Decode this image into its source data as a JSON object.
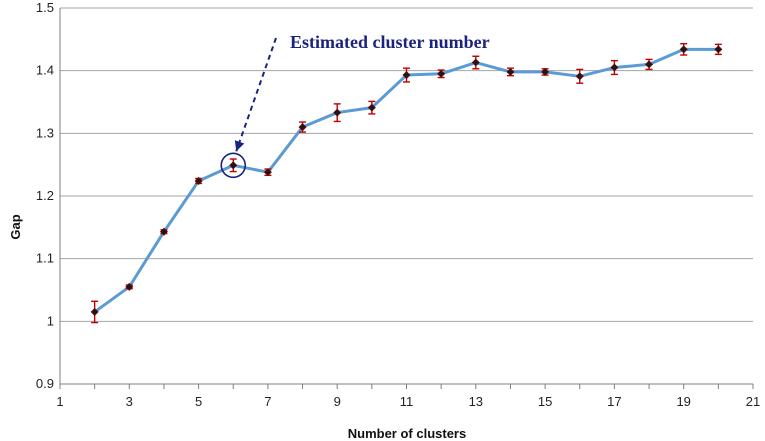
{
  "chart_data": {
    "type": "line",
    "title": "",
    "xlabel": "Number of clusters",
    "ylabel": "Gap",
    "xlim": [
      1,
      21
    ],
    "ylim": [
      0.9,
      1.5
    ],
    "x_ticks": [
      1,
      3,
      5,
      7,
      9,
      11,
      13,
      15,
      17,
      19,
      21
    ],
    "x_tick_labels": [
      "1",
      "3",
      "5",
      "7",
      "9",
      "11",
      "13",
      "15",
      "17",
      "19",
      "21"
    ],
    "y_ticks": [
      0.9,
      1.0,
      1.1,
      1.2,
      1.3,
      1.4,
      1.5
    ],
    "y_tick_labels": [
      "0.9",
      "1",
      "1.1",
      "1.2",
      "1.3",
      "1.4",
      "1.5"
    ],
    "grid": "horizontal",
    "legend": "none",
    "series": [
      {
        "x": [
          2,
          3,
          4,
          5,
          6,
          7,
          8,
          9,
          10,
          11,
          12,
          13,
          14,
          15,
          16,
          17,
          18,
          19,
          20
        ],
        "y": [
          1.015,
          1.055,
          1.143,
          1.224,
          1.249,
          1.238,
          1.31,
          1.333,
          1.341,
          1.393,
          1.395,
          1.413,
          1.398,
          1.398,
          1.391,
          1.405,
          1.41,
          1.434,
          1.434
        ],
        "error": [
          0.017,
          0.003,
          0.003,
          0.004,
          0.01,
          0.005,
          0.008,
          0.014,
          0.01,
          0.011,
          0.006,
          0.01,
          0.006,
          0.005,
          0.011,
          0.011,
          0.008,
          0.009,
          0.008
        ]
      }
    ],
    "annotations": [
      {
        "text": "Estimated cluster number",
        "target_x": 6,
        "target_y": 1.249
      }
    ],
    "colors": {
      "line": "#5b9bd5",
      "marker": "#1a1a1a",
      "error_bar": "#c00000",
      "grid": "#a6a6a6",
      "axis": "#7f7f7f",
      "annotation": "#1a237e"
    }
  }
}
